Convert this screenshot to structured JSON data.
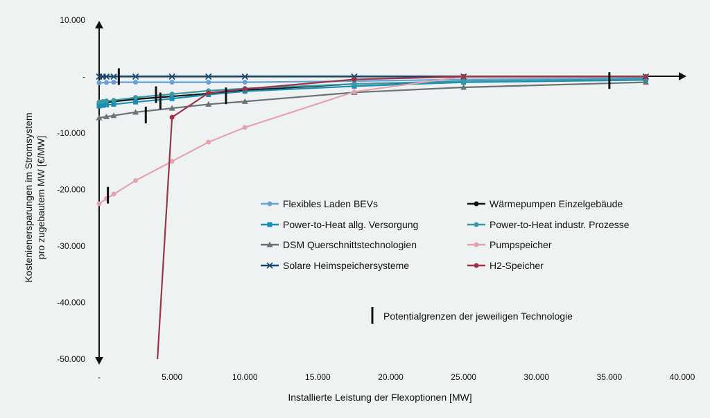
{
  "chart_data": {
    "type": "line",
    "xlabel": "Installierte Leistung der Flexoptionen [MW]",
    "ylabel_lines": [
      "Kostenienersparungen im Stromsystem",
      "pro zugebautem MW [€/MW]"
    ],
    "xlim": [
      0,
      40000
    ],
    "ylim": [
      -50000,
      10000
    ],
    "x_ticks": [
      {
        "value": 0,
        "label": "-"
      },
      {
        "value": 5000,
        "label": "5.000"
      },
      {
        "value": 10000,
        "label": "10.000"
      },
      {
        "value": 15000,
        "label": "15.000"
      },
      {
        "value": 20000,
        "label": "20.000"
      },
      {
        "value": 25000,
        "label": "25.000"
      },
      {
        "value": 30000,
        "label": "30.000"
      },
      {
        "value": 35000,
        "label": "35.000"
      },
      {
        "value": 40000,
        "label": "40.000"
      }
    ],
    "y_ticks": [
      {
        "value": 10000,
        "label": "10.000"
      },
      {
        "value": 0,
        "label": "-"
      },
      {
        "value": -10000,
        "label": "-10.000"
      },
      {
        "value": -20000,
        "label": "-20.000"
      },
      {
        "value": -30000,
        "label": "-30.000"
      },
      {
        "value": -40000,
        "label": "-40.000"
      },
      {
        "value": -50000,
        "label": "-50.000"
      }
    ],
    "grid": false,
    "legend_position": "center-right",
    "series": [
      {
        "name": "Flexibles Laden BEVs",
        "color": "#6a9fd4",
        "marker": "circle",
        "x": [
          0,
          500,
          1000,
          2500,
          5000,
          7500,
          10000,
          17500,
          25000,
          37500
        ],
        "y": [
          -1100,
          -1050,
          -1000,
          -1000,
          -1000,
          -1000,
          -1000,
          -800,
          -500,
          -300
        ]
      },
      {
        "name": "Wärmepumpen Einzelgebäude",
        "color": "#111111",
        "marker": "circle",
        "x": [
          0,
          250,
          500,
          1000,
          2500,
          5000,
          7500,
          10000,
          17500,
          25000,
          37500
        ],
        "y": [
          -4800,
          -4700,
          -4600,
          -4400,
          -4000,
          -3500,
          -3000,
          -2400,
          -1300,
          -900,
          -500
        ]
      },
      {
        "name": "Power-to-Heat allg. Versorgung",
        "color": "#1a8fb5",
        "marker": "square",
        "x": [
          0,
          250,
          500,
          1000,
          2500,
          5000,
          7500,
          10000,
          17500,
          25000,
          37500
        ],
        "y": [
          -5200,
          -5100,
          -5000,
          -4900,
          -4500,
          -3900,
          -3200,
          -2600,
          -1700,
          -1000,
          -600
        ]
      },
      {
        "name": "Power-to-Heat industr. Prozesse",
        "color": "#3a9aa3",
        "marker": "circle",
        "x": [
          0,
          250,
          500,
          1000,
          2500,
          5000,
          7500,
          10000,
          17500,
          25000,
          37500
        ],
        "y": [
          -4500,
          -4400,
          -4300,
          -4200,
          -3700,
          -3100,
          -2500,
          -2100,
          -1300,
          -800,
          -400
        ]
      },
      {
        "name": "DSM Querschnittstechnologien",
        "color": "#6b7276",
        "marker": "triangle",
        "x": [
          0,
          500,
          1000,
          2500,
          5000,
          7500,
          10000,
          17500,
          25000,
          37500
        ],
        "y": [
          -7300,
          -7100,
          -6900,
          -6300,
          -5600,
          -4900,
          -4400,
          -2800,
          -1900,
          -1000
        ]
      },
      {
        "name": "Pumpspeicher",
        "color": "#e2a4ad",
        "marker": "circle",
        "x": [
          0,
          500,
          1000,
          2500,
          5000,
          7500,
          10000,
          17500,
          25000,
          37500
        ],
        "y": [
          -22500,
          -21600,
          -20800,
          -18400,
          -15000,
          -11600,
          -9000,
          -2700,
          0,
          0
        ]
      },
      {
        "name": "Solare Heimspeichersysteme",
        "color": "#16456e",
        "marker": "x",
        "x": [
          0,
          250,
          500,
          1000,
          2500,
          5000,
          7500,
          10000,
          17500,
          25000,
          37500
        ],
        "y": [
          0,
          0,
          0,
          0,
          0,
          0,
          0,
          0,
          0,
          0,
          0
        ]
      },
      {
        "name": "H2-Speicher",
        "color": "#9b3446",
        "marker": "circle",
        "x": [
          4000,
          5000,
          7500,
          10000,
          17500,
          25000,
          37500
        ],
        "y": [
          -50000,
          -7200,
          -2900,
          -2200,
          -500,
          0,
          0
        ]
      }
    ],
    "potential_limits": [
      {
        "x": 1350,
        "y": 0
      },
      {
        "x": 3900,
        "y": -3200
      },
      {
        "x": 4200,
        "y": -4300
      },
      {
        "x": 3200,
        "y": -6800
      },
      {
        "x": 600,
        "y": -21000
      },
      {
        "x": 8700,
        "y": -3400
      },
      {
        "x": 35000,
        "y": -700
      }
    ],
    "annotation": "Potentialgrenzen der jeweiligen Technologie"
  }
}
